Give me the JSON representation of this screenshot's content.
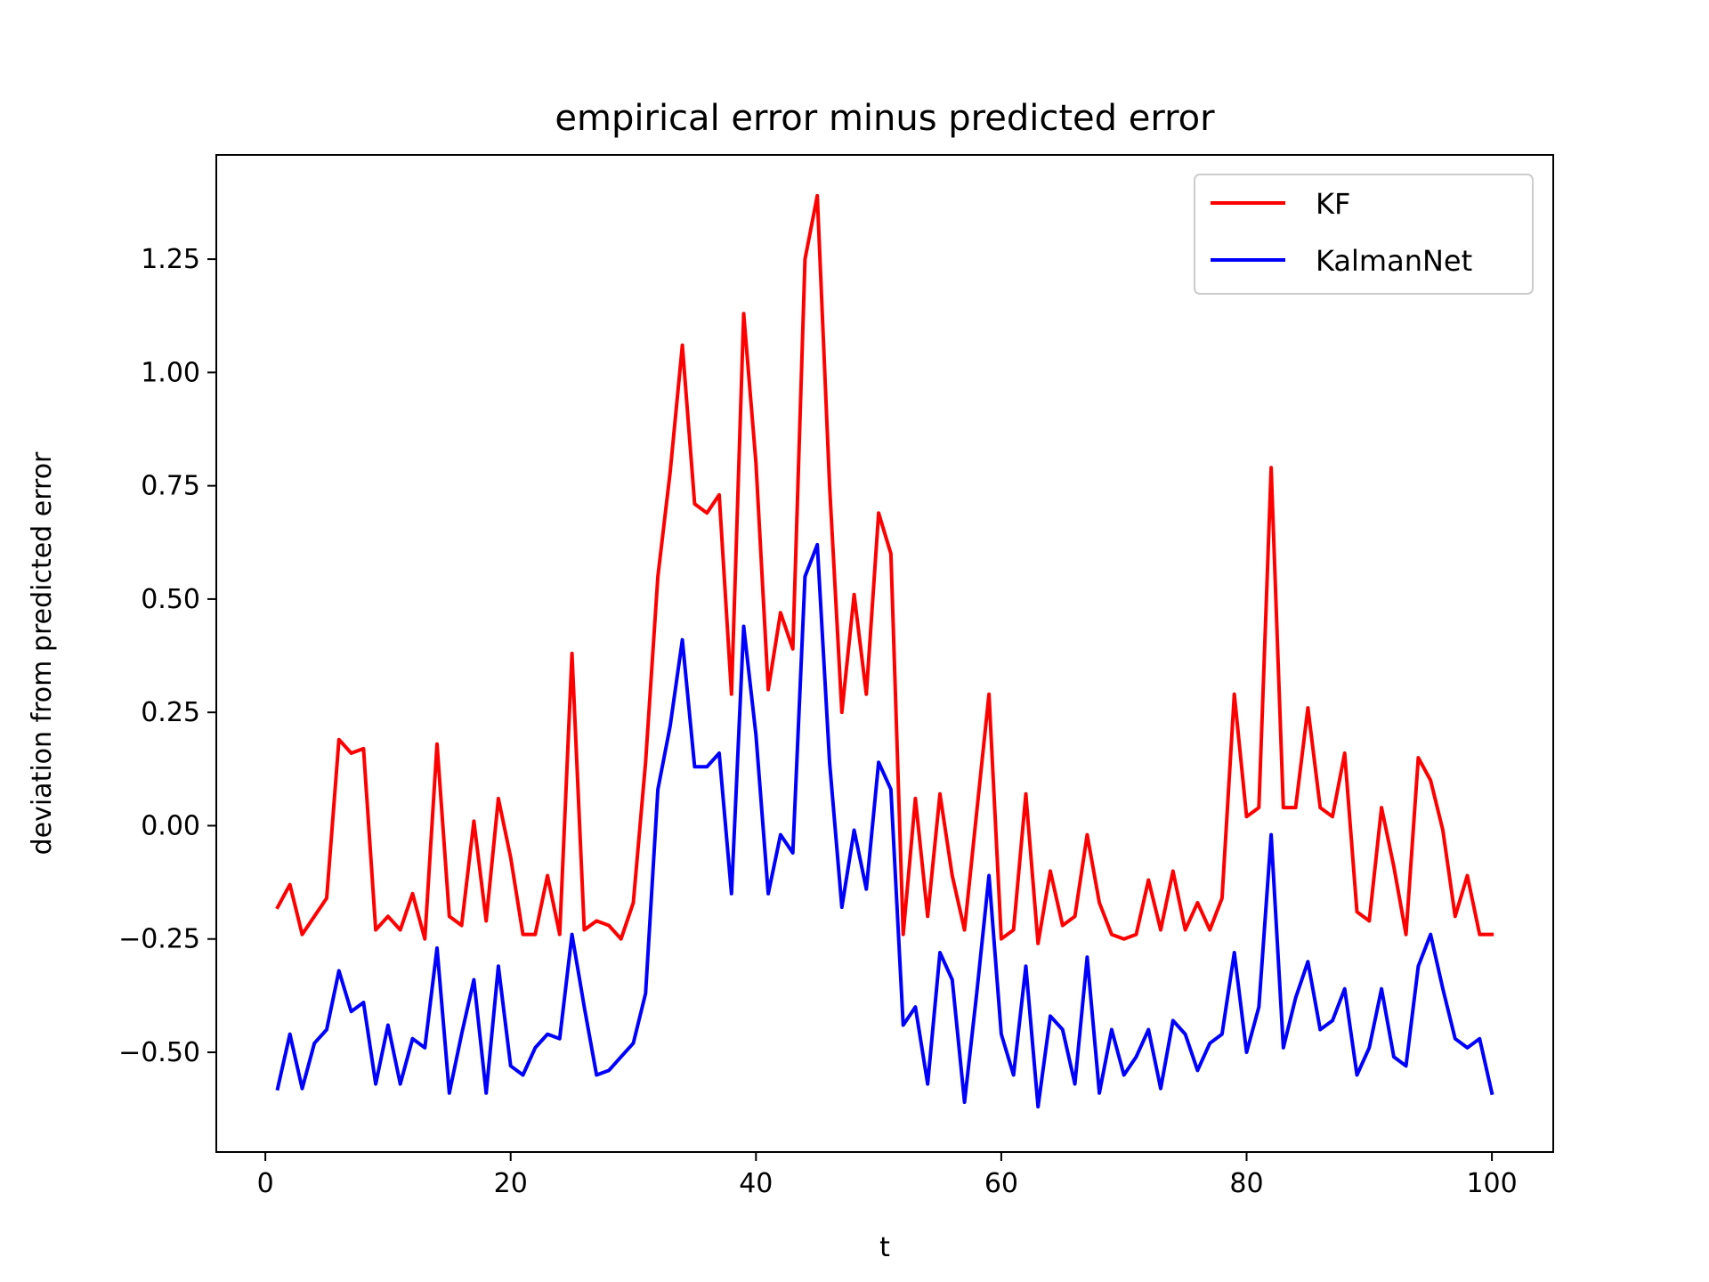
{
  "chart_data": {
    "type": "line",
    "title": "empirical error minus predicted error",
    "xlabel": "t",
    "ylabel": "deviation from predicted error",
    "xlim": [
      -4,
      105
    ],
    "ylim": [
      -0.72,
      1.48
    ],
    "xticks": [
      0,
      20,
      40,
      60,
      80,
      100
    ],
    "xtick_labels": [
      "0",
      "20",
      "40",
      "60",
      "80",
      "100"
    ],
    "yticks": [
      -0.5,
      -0.25,
      0.0,
      0.25,
      0.5,
      0.75,
      1.0,
      1.25
    ],
    "ytick_labels": [
      "−0.50",
      "−0.25",
      "0.00",
      "0.25",
      "0.50",
      "0.75",
      "1.00",
      "1.25"
    ],
    "grid": false,
    "legend": {
      "position": "top-right"
    },
    "series": [
      {
        "name": "KF",
        "color": "#ff0000",
        "values": [
          -0.18,
          -0.13,
          -0.24,
          -0.2,
          -0.16,
          0.19,
          0.16,
          0.17,
          -0.23,
          -0.2,
          -0.23,
          -0.15,
          -0.25,
          0.18,
          -0.2,
          -0.22,
          0.01,
          -0.21,
          0.06,
          -0.07,
          -0.24,
          -0.24,
          -0.11,
          -0.24,
          0.38,
          -0.23,
          -0.21,
          -0.22,
          -0.25,
          -0.17,
          0.14,
          0.55,
          0.78,
          1.06,
          0.71,
          0.69,
          0.73,
          0.29,
          1.13,
          0.8,
          0.3,
          0.47,
          0.39,
          1.25,
          1.39,
          0.75,
          0.25,
          0.51,
          0.29,
          0.69,
          0.6,
          -0.24,
          0.06,
          -0.2,
          0.07,
          -0.11,
          -0.23,
          0.03,
          0.29,
          -0.25,
          -0.23,
          0.07,
          -0.26,
          -0.1,
          -0.22,
          -0.2,
          -0.02,
          -0.17,
          -0.24,
          -0.25,
          -0.24,
          -0.12,
          -0.23,
          -0.1,
          -0.23,
          -0.17,
          -0.23,
          -0.16,
          0.29,
          0.02,
          0.04,
          0.79,
          0.04,
          0.04,
          0.26,
          0.04,
          0.02,
          0.16,
          -0.19,
          -0.21,
          0.04,
          -0.09,
          -0.24,
          0.15,
          0.1,
          -0.01,
          -0.2,
          -0.11,
          -0.24,
          -0.24
        ]
      },
      {
        "name": "KalmanNet",
        "color": "#0000ff",
        "values": [
          -0.58,
          -0.46,
          -0.58,
          -0.48,
          -0.45,
          -0.32,
          -0.41,
          -0.39,
          -0.57,
          -0.44,
          -0.57,
          -0.47,
          -0.49,
          -0.27,
          -0.59,
          -0.46,
          -0.34,
          -0.59,
          -0.31,
          -0.53,
          -0.55,
          -0.49,
          -0.46,
          -0.47,
          -0.24,
          -0.4,
          -0.55,
          -0.54,
          -0.51,
          -0.48,
          -0.37,
          0.08,
          0.22,
          0.41,
          0.13,
          0.13,
          0.16,
          -0.15,
          0.44,
          0.2,
          -0.15,
          -0.02,
          -0.06,
          0.55,
          0.62,
          0.14,
          -0.18,
          -0.01,
          -0.14,
          0.14,
          0.08,
          -0.44,
          -0.4,
          -0.57,
          -0.28,
          -0.34,
          -0.61,
          -0.37,
          -0.11,
          -0.46,
          -0.55,
          -0.31,
          -0.62,
          -0.42,
          -0.45,
          -0.57,
          -0.29,
          -0.59,
          -0.45,
          -0.55,
          -0.51,
          -0.45,
          -0.58,
          -0.43,
          -0.46,
          -0.54,
          -0.48,
          -0.46,
          -0.28,
          -0.5,
          -0.4,
          -0.02,
          -0.49,
          -0.38,
          -0.3,
          -0.45,
          -0.43,
          -0.36,
          -0.55,
          -0.49,
          -0.36,
          -0.51,
          -0.53,
          -0.31,
          -0.24,
          -0.36,
          -0.47,
          -0.49,
          -0.47,
          -0.59
        ]
      }
    ]
  }
}
